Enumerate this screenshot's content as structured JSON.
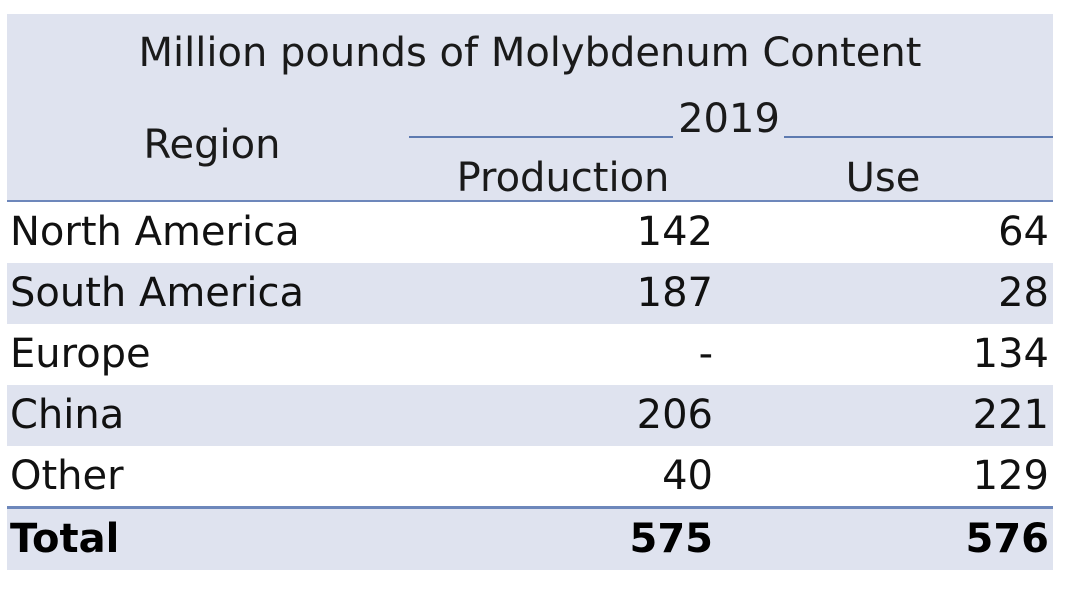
{
  "chart_data": {
    "type": "table",
    "title": "Million pounds of Molybdenum Content",
    "header": {
      "region": "Region",
      "year": "2019",
      "production": "Production",
      "use": "Use"
    },
    "columns": [
      "Region",
      "Production",
      "Use"
    ],
    "rows": [
      {
        "region": "North America",
        "production": "142",
        "use": "64"
      },
      {
        "region": "South America",
        "production": "187",
        "use": "28"
      },
      {
        "region": "Europe",
        "production": "-",
        "use": "134"
      },
      {
        "region": "China",
        "production": "206",
        "use": "221"
      },
      {
        "region": "Other",
        "production": "40",
        "use": "129"
      }
    ],
    "total": {
      "region": "Total",
      "production": "575",
      "use": "576"
    }
  },
  "colors": {
    "header_background": "#dfe3ef",
    "row_alternate": "#dfe3ef",
    "rule": "#6d87bb",
    "text": "#111111"
  }
}
